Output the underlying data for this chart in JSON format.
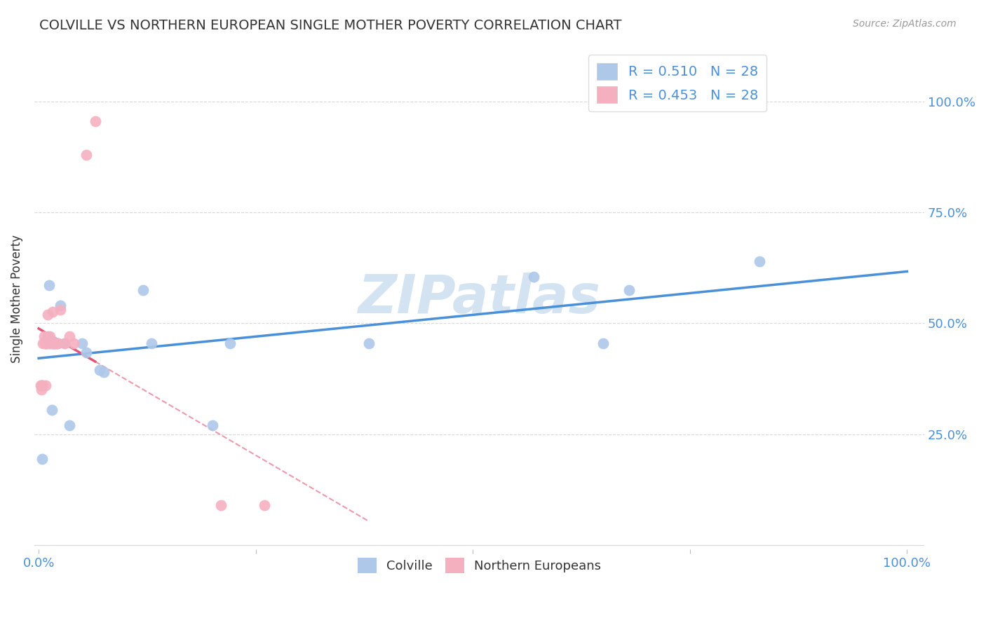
{
  "title": "COLVILLE VS NORTHERN EUROPEAN SINGLE MOTHER POVERTY CORRELATION CHART",
  "source": "Source: ZipAtlas.com",
  "ylabel": "Single Mother Poverty",
  "colville_R": "0.510",
  "colville_N": "28",
  "northern_R": "0.453",
  "northern_N": "28",
  "colville_color": "#adc8e8",
  "northern_color": "#f5b0c0",
  "trend_colville_color": "#4a90d9",
  "trend_northern_color": "#e05575",
  "legend_text_color": "#4a90d9",
  "title_color": "#333333",
  "grid_color": "#d8d8d8",
  "watermark_color": "#ccdff0",
  "colville_x": [
    0.004,
    0.008,
    0.009,
    0.01,
    0.012,
    0.013,
    0.015,
    0.016,
    0.016,
    0.018,
    0.02,
    0.022,
    0.025,
    0.03,
    0.035,
    0.05,
    0.055,
    0.07,
    0.075,
    0.12,
    0.13,
    0.2,
    0.22,
    0.38,
    0.57,
    0.65,
    0.68,
    0.83
  ],
  "colville_y": [
    0.195,
    0.46,
    0.455,
    0.47,
    0.585,
    0.455,
    0.305,
    0.455,
    0.46,
    0.455,
    0.455,
    0.455,
    0.54,
    0.455,
    0.27,
    0.455,
    0.435,
    0.395,
    0.39,
    0.575,
    0.455,
    0.27,
    0.455,
    0.455,
    0.605,
    0.455,
    0.575,
    0.64
  ],
  "northern_x": [
    0.002,
    0.003,
    0.003,
    0.004,
    0.004,
    0.005,
    0.006,
    0.007,
    0.008,
    0.008,
    0.009,
    0.01,
    0.012,
    0.013,
    0.015,
    0.016,
    0.018,
    0.018,
    0.02,
    0.022,
    0.025,
    0.03,
    0.035,
    0.04,
    0.055,
    0.065,
    0.21,
    0.26
  ],
  "northern_y": [
    0.36,
    0.35,
    0.36,
    0.36,
    0.36,
    0.455,
    0.47,
    0.455,
    0.455,
    0.36,
    0.455,
    0.52,
    0.455,
    0.47,
    0.455,
    0.525,
    0.455,
    0.455,
    0.455,
    0.455,
    0.53,
    0.455,
    0.47,
    0.455,
    0.88,
    0.955,
    0.09,
    0.09
  ],
  "background_color": "#ffffff",
  "figsize": [
    14.06,
    8.92
  ],
  "dpi": 100,
  "xlim": [
    -0.005,
    1.02
  ],
  "ylim": [
    -0.01,
    1.12
  ],
  "yticks": [
    0.25,
    0.5,
    0.75,
    1.0
  ],
  "ytick_labels": [
    "25.0%",
    "50.0%",
    "75.0%",
    "100.0%"
  ],
  "xtick_show": [
    0.0,
    1.0
  ],
  "xtick_labels": [
    "0.0%",
    "100.0%"
  ]
}
